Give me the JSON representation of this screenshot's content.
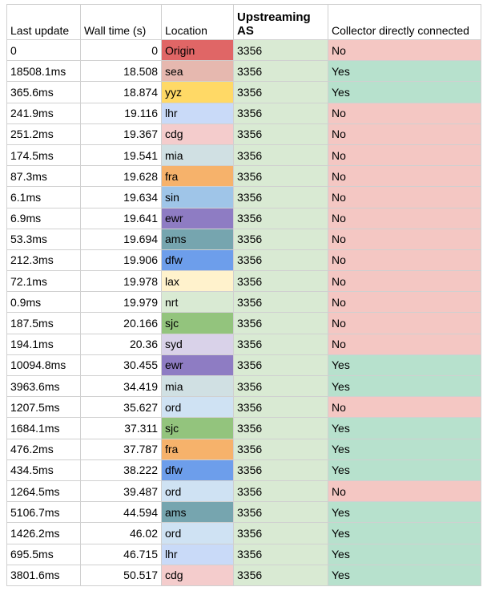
{
  "headers": {
    "last_update": "Last update",
    "wall_time": "Wall time (s)",
    "location": "Location",
    "upstreaming_as": "Upstreaming AS",
    "collector": "Collector directly connected"
  },
  "colors": {
    "yes": "#b7e1cd",
    "no": "#f4c7c3",
    "as": "#d9ead3",
    "locations": {
      "Origin": "#e06666",
      "sea": "#e6b8af",
      "yyz": "#ffd966",
      "lhr": "#c9daf8",
      "cdg": "#f4cccc",
      "mia": "#d0e0e3",
      "fra": "#f6b26b",
      "sin": "#9fc5e8",
      "ewr": "#8e7cc3",
      "ams": "#76a5af",
      "dfw": "#6d9eeb",
      "lax": "#fff2cc",
      "nrt": "#d9ead3",
      "sjc": "#93c47d",
      "syd": "#d9d2e9",
      "ord": "#cfe2f3"
    }
  },
  "rows": [
    {
      "last_update": "0",
      "wall_time": "0",
      "location": "Origin",
      "as": "3356",
      "connected": "No"
    },
    {
      "last_update": "18508.1ms",
      "wall_time": "18.508",
      "location": "sea",
      "as": "3356",
      "connected": "Yes"
    },
    {
      "last_update": "365.6ms",
      "wall_time": "18.874",
      "location": "yyz",
      "as": "3356",
      "connected": "Yes"
    },
    {
      "last_update": "241.9ms",
      "wall_time": "19.116",
      "location": "lhr",
      "as": "3356",
      "connected": "No"
    },
    {
      "last_update": "251.2ms",
      "wall_time": "19.367",
      "location": "cdg",
      "as": "3356",
      "connected": "No"
    },
    {
      "last_update": "174.5ms",
      "wall_time": "19.541",
      "location": "mia",
      "as": "3356",
      "connected": "No"
    },
    {
      "last_update": "87.3ms",
      "wall_time": "19.628",
      "location": "fra",
      "as": "3356",
      "connected": "No"
    },
    {
      "last_update": "6.1ms",
      "wall_time": "19.634",
      "location": "sin",
      "as": "3356",
      "connected": "No"
    },
    {
      "last_update": "6.9ms",
      "wall_time": "19.641",
      "location": "ewr",
      "as": "3356",
      "connected": "No"
    },
    {
      "last_update": "53.3ms",
      "wall_time": "19.694",
      "location": "ams",
      "as": "3356",
      "connected": "No"
    },
    {
      "last_update": "212.3ms",
      "wall_time": "19.906",
      "location": "dfw",
      "as": "3356",
      "connected": "No"
    },
    {
      "last_update": "72.1ms",
      "wall_time": "19.978",
      "location": "lax",
      "as": "3356",
      "connected": "No"
    },
    {
      "last_update": "0.9ms",
      "wall_time": "19.979",
      "location": "nrt",
      "as": "3356",
      "connected": "No"
    },
    {
      "last_update": "187.5ms",
      "wall_time": "20.166",
      "location": "sjc",
      "as": "3356",
      "connected": "No"
    },
    {
      "last_update": "194.1ms",
      "wall_time": "20.36",
      "location": "syd",
      "as": "3356",
      "connected": "No"
    },
    {
      "last_update": "10094.8ms",
      "wall_time": "30.455",
      "location": "ewr",
      "as": "3356",
      "connected": "Yes"
    },
    {
      "last_update": "3963.6ms",
      "wall_time": "34.419",
      "location": "mia",
      "as": "3356",
      "connected": "Yes"
    },
    {
      "last_update": "1207.5ms",
      "wall_time": "35.627",
      "location": "ord",
      "as": "3356",
      "connected": "No"
    },
    {
      "last_update": "1684.1ms",
      "wall_time": "37.311",
      "location": "sjc",
      "as": "3356",
      "connected": "Yes"
    },
    {
      "last_update": "476.2ms",
      "wall_time": "37.787",
      "location": "fra",
      "as": "3356",
      "connected": "Yes"
    },
    {
      "last_update": "434.5ms",
      "wall_time": "38.222",
      "location": "dfw",
      "as": "3356",
      "connected": "Yes"
    },
    {
      "last_update": "1264.5ms",
      "wall_time": "39.487",
      "location": "ord",
      "as": "3356",
      "connected": "No"
    },
    {
      "last_update": "5106.7ms",
      "wall_time": "44.594",
      "location": "ams",
      "as": "3356",
      "connected": "Yes"
    },
    {
      "last_update": "1426.2ms",
      "wall_time": "46.02",
      "location": "ord",
      "as": "3356",
      "connected": "Yes"
    },
    {
      "last_update": "695.5ms",
      "wall_time": "46.715",
      "location": "lhr",
      "as": "3356",
      "connected": "Yes"
    },
    {
      "last_update": "3801.6ms",
      "wall_time": "50.517",
      "location": "cdg",
      "as": "3356",
      "connected": "Yes"
    }
  ]
}
